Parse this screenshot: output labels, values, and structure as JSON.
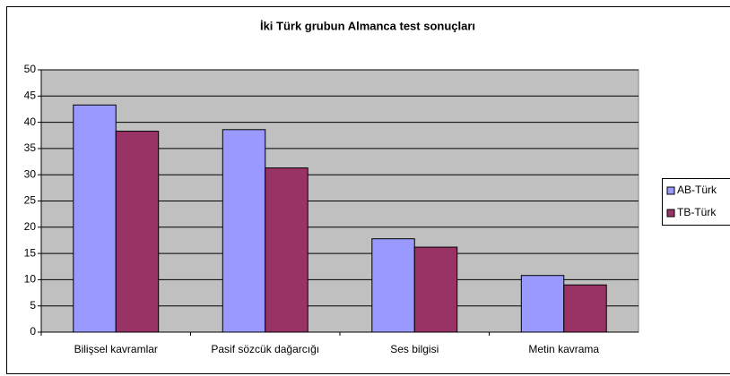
{
  "chart_data": {
    "type": "bar",
    "title": "İki Türk grubun Almanca test sonuçları",
    "categories": [
      "Bilişsel kavramlar",
      "Pasif sözcük dağarcığı",
      "Ses bilgisi",
      "Metin kavrama"
    ],
    "series": [
      {
        "name": "AB-Türk",
        "color": "#9999ff",
        "values": [
          43.3,
          38.6,
          17.8,
          10.8
        ]
      },
      {
        "name": "TB-Türk",
        "color": "#993366",
        "values": [
          38.3,
          31.3,
          16.2,
          9.0
        ]
      }
    ],
    "ylim": [
      0,
      50
    ],
    "yticks": [
      0,
      5,
      10,
      15,
      20,
      25,
      30,
      35,
      40,
      45,
      50
    ],
    "grid": true,
    "legend": "right"
  }
}
